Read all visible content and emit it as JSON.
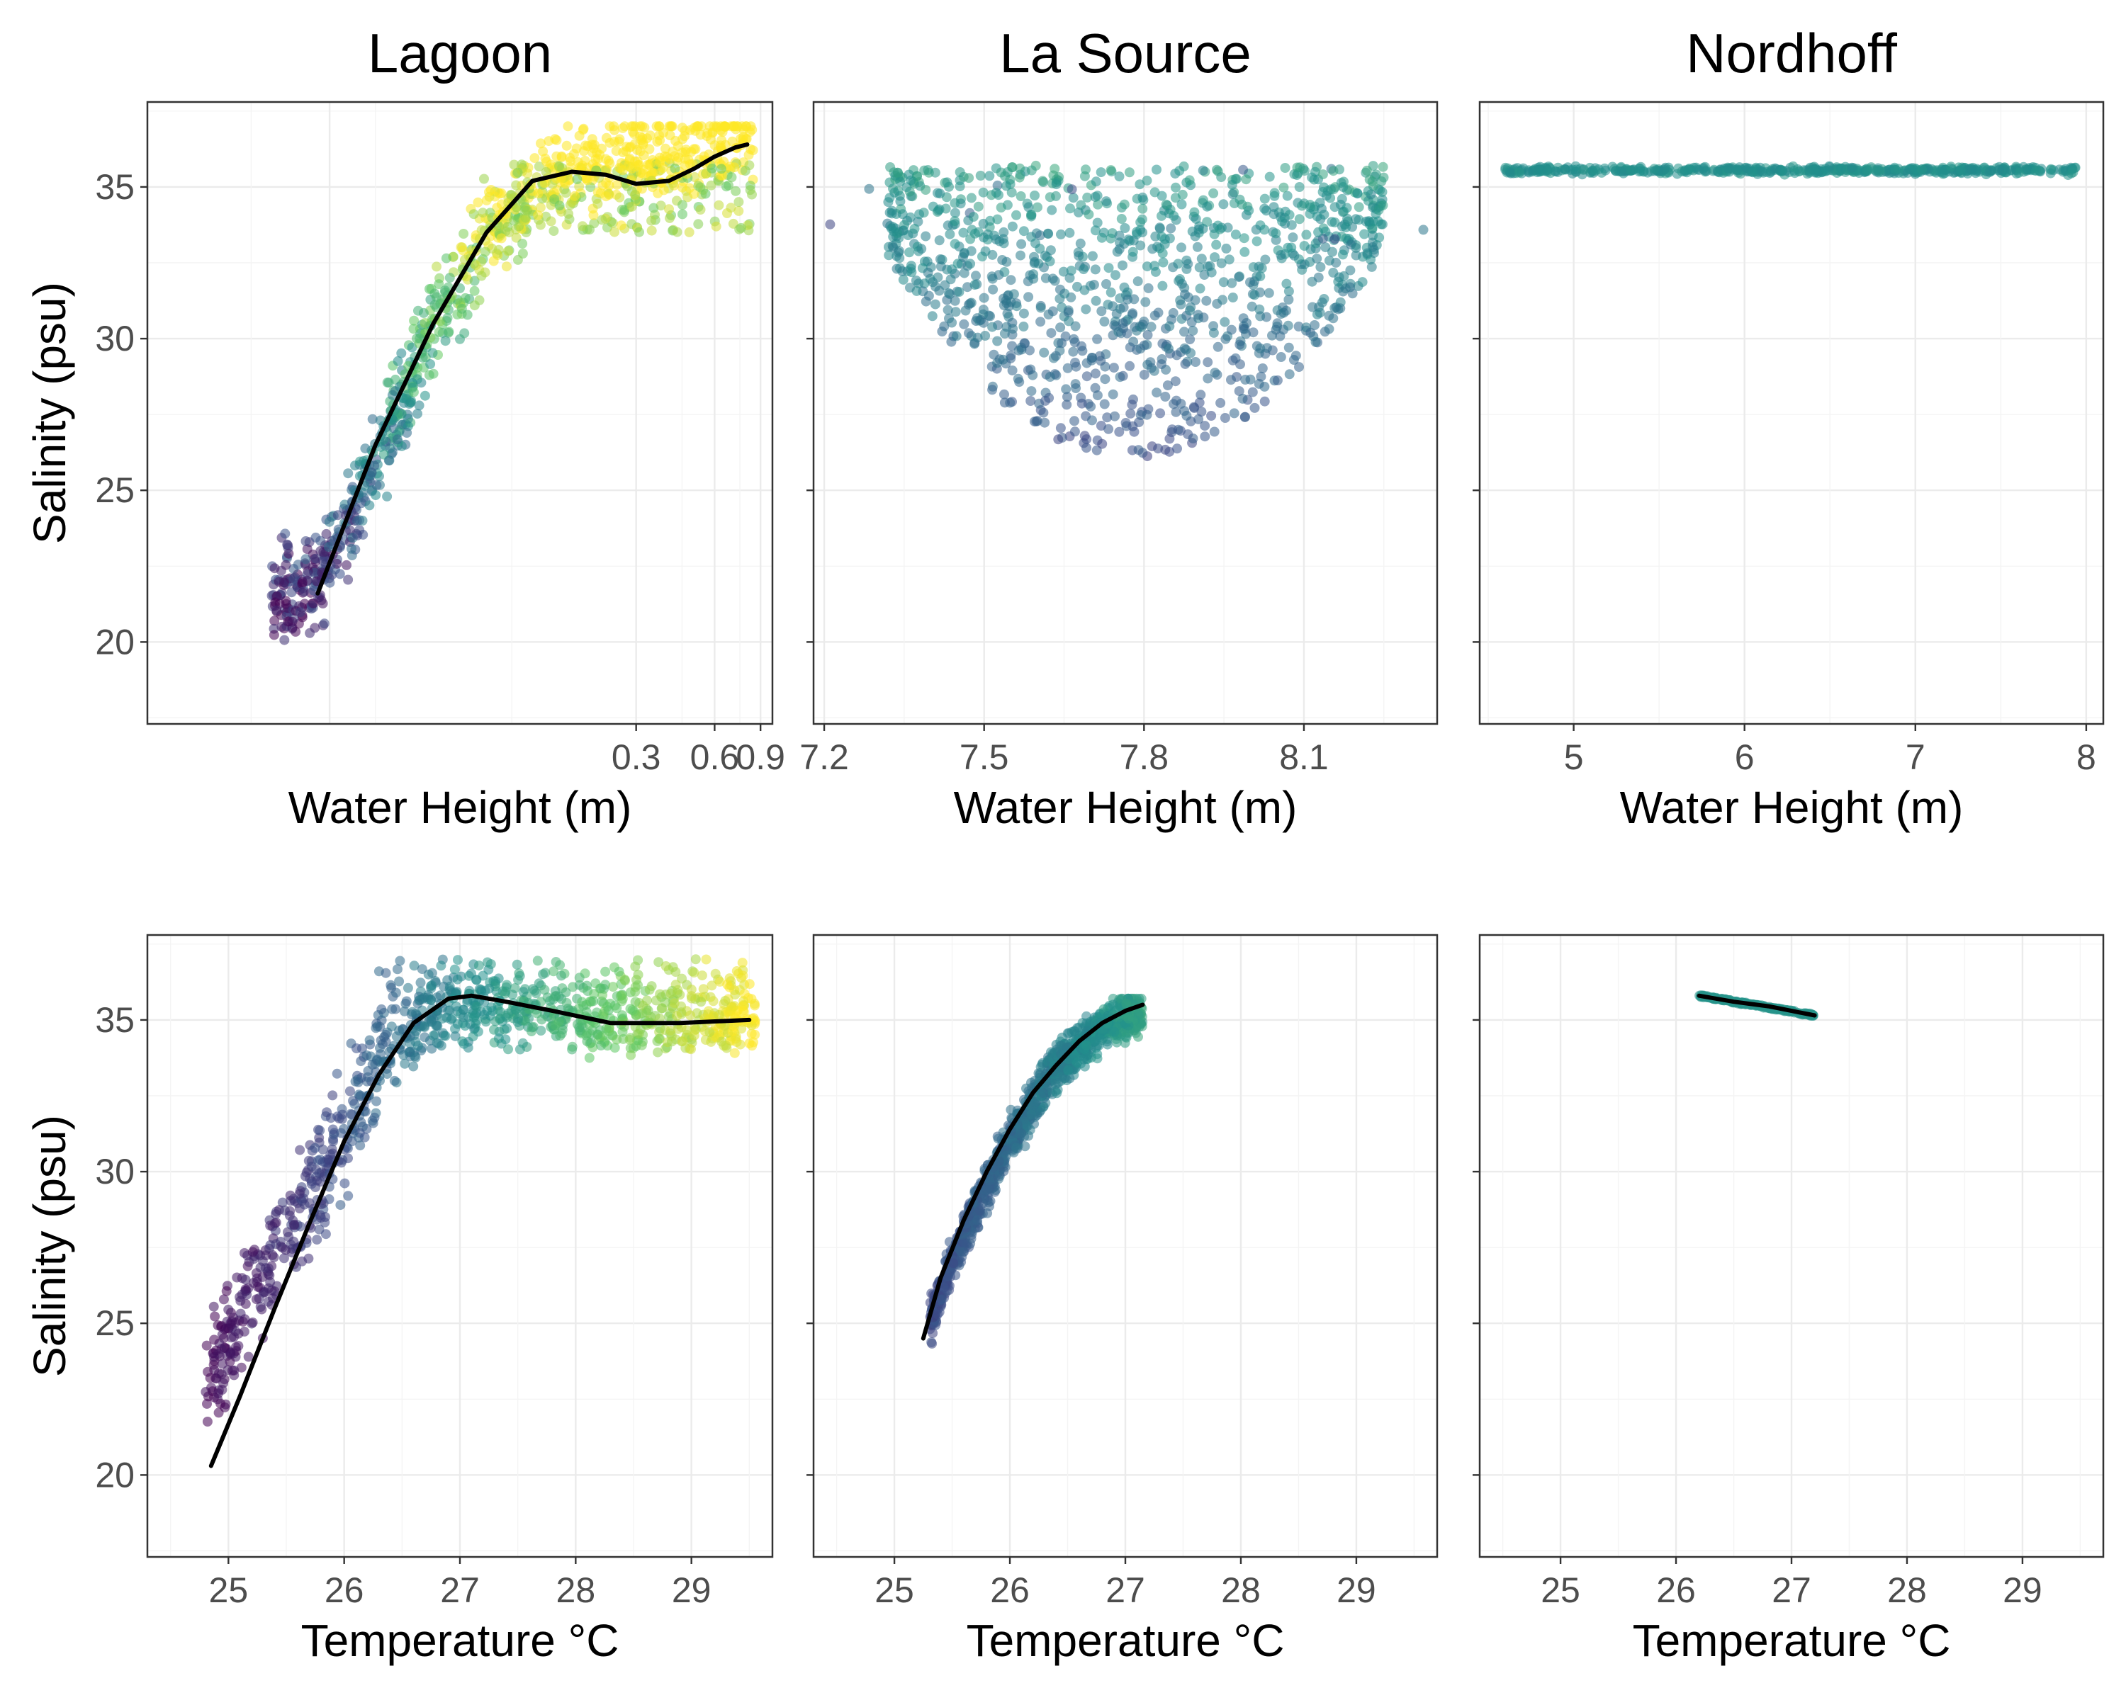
{
  "colors": {
    "smooth_line": "#000000",
    "point_palette": [
      "#440154",
      "#3b528b",
      "#21908d",
      "#5dc863",
      "#fde725"
    ]
  },
  "chart_data": [
    {
      "id": "lagoon-height",
      "type": "scatter",
      "title": "Lagoon",
      "xlabel": "Water Height (m)",
      "ylabel": "Salinity (psu)",
      "x_scale": "log",
      "xlim": [
        0.004,
        1.0
      ],
      "ylim": [
        17.3,
        37.8
      ],
      "xticks": [
        0.3,
        0.6,
        0.9
      ],
      "xtick_labels": [
        "0.3",
        "0.6",
        "0.9"
      ],
      "yticks": [
        20,
        25,
        30,
        35
      ],
      "ytick_labels": [
        "20",
        "25",
        "30",
        "35"
      ],
      "grid": true,
      "smooth": {
        "x": [
          0.018,
          0.03,
          0.05,
          0.08,
          0.12,
          0.17,
          0.23,
          0.3,
          0.4,
          0.5,
          0.6,
          0.72,
          0.8
        ],
        "y": [
          21.6,
          26.5,
          30.5,
          33.5,
          35.2,
          35.5,
          35.4,
          35.1,
          35.2,
          35.6,
          36.0,
          36.3,
          36.4
        ]
      },
      "points": {
        "x": [
          0.018,
          0.022,
          0.03,
          0.05,
          0.08,
          0.15,
          0.3,
          0.5,
          0.75
        ],
        "y": [
          22,
          24,
          27,
          31,
          34,
          36,
          36.5,
          36.8,
          37
        ]
      }
    },
    {
      "id": "lasource-height",
      "type": "scatter",
      "title": "La Source",
      "xlabel": "Water Height (m)",
      "ylabel": "",
      "xlim": [
        7.18,
        8.35
      ],
      "ylim": [
        17.3,
        37.8
      ],
      "xticks": [
        7.2,
        7.5,
        7.8,
        8.1
      ],
      "xtick_labels": [
        "7.2",
        "7.5",
        "7.8",
        "8.1"
      ],
      "yticks": [
        20,
        25,
        30,
        35
      ],
      "grid": true,
      "points": {
        "x": [
          7.3,
          7.5,
          7.65,
          7.8,
          7.95,
          8.1,
          8.25
        ],
        "y": [
          35,
          33,
          30,
          28,
          30,
          33,
          35
        ]
      }
    },
    {
      "id": "nordhoff-height",
      "type": "scatter",
      "title": "Nordhoff",
      "xlabel": "Water Height (m)",
      "ylabel": "",
      "xlim": [
        4.45,
        8.1
      ],
      "ylim": [
        17.3,
        37.8
      ],
      "xticks": [
        5,
        6,
        7,
        8
      ],
      "xtick_labels": [
        "5",
        "6",
        "7",
        "8"
      ],
      "yticks": [
        20,
        25,
        30,
        35
      ],
      "grid": true,
      "points": {
        "x": [
          4.6,
          5.2,
          6.0,
          6.8,
          7.5,
          7.95
        ],
        "y": [
          35.7,
          35.6,
          35.5,
          35.5,
          35.6,
          35.6
        ]
      }
    },
    {
      "id": "lagoon-temp",
      "type": "scatter",
      "title": "",
      "xlabel": "Temperature °C",
      "ylabel": "Salinity (psu)",
      "xlim": [
        24.3,
        29.7
      ],
      "ylim": [
        17.3,
        37.8
      ],
      "xticks": [
        25,
        26,
        27,
        28,
        29
      ],
      "xtick_labels": [
        "25",
        "26",
        "27",
        "28",
        "29"
      ],
      "yticks": [
        20,
        25,
        30,
        35
      ],
      "ytick_labels": [
        "20",
        "25",
        "30",
        "35"
      ],
      "grid": true,
      "smooth": {
        "x": [
          24.85,
          25.1,
          25.4,
          25.7,
          26.0,
          26.3,
          26.6,
          26.9,
          27.1,
          27.4,
          27.8,
          28.3,
          28.9,
          29.5
        ],
        "y": [
          20.3,
          22.6,
          25.5,
          28.3,
          31.0,
          33.2,
          34.9,
          35.7,
          35.8,
          35.6,
          35.3,
          34.9,
          34.9,
          35.0
        ]
      },
      "points": {
        "x": [
          24.8,
          25.3,
          25.8,
          26.3,
          27.0,
          27.8,
          28.6,
          29.5
        ],
        "y": [
          23,
          26,
          30,
          34,
          36,
          35.5,
          35,
          35
        ]
      }
    },
    {
      "id": "lasource-temp",
      "type": "scatter",
      "title": "",
      "xlabel": "Temperature °C",
      "ylabel": "",
      "xlim": [
        24.3,
        29.7
      ],
      "ylim": [
        17.3,
        37.8
      ],
      "xticks": [
        25,
        26,
        27,
        28,
        29
      ],
      "xtick_labels": [
        "25",
        "26",
        "27",
        "28",
        "29"
      ],
      "yticks": [
        20,
        25,
        30,
        35
      ],
      "grid": true,
      "smooth": {
        "x": [
          25.25,
          25.4,
          25.6,
          25.8,
          26.0,
          26.2,
          26.4,
          26.6,
          26.8,
          27.0,
          27.15
        ],
        "y": [
          24.5,
          26.5,
          28.4,
          30.0,
          31.4,
          32.6,
          33.5,
          34.3,
          34.9,
          35.3,
          35.5
        ]
      },
      "points": {
        "x": [
          25.3,
          25.6,
          26.0,
          26.4,
          26.8,
          27.1
        ],
        "y": [
          25,
          28,
          31,
          33.5,
          35,
          35.3
        ]
      }
    },
    {
      "id": "nordhoff-temp",
      "type": "scatter",
      "title": "",
      "xlabel": "Temperature °C",
      "ylabel": "",
      "xlim": [
        24.3,
        29.7
      ],
      "ylim": [
        17.3,
        37.8
      ],
      "xticks": [
        25,
        26,
        27,
        28,
        29
      ],
      "xtick_labels": [
        "25",
        "26",
        "27",
        "28",
        "29"
      ],
      "yticks": [
        20,
        25,
        30,
        35
      ],
      "grid": true,
      "smooth": {
        "x": [
          26.2,
          26.5,
          26.8,
          27.0,
          27.2
        ],
        "y": [
          35.8,
          35.6,
          35.45,
          35.3,
          35.15
        ]
      },
      "points": {
        "x": [
          26.2,
          26.5,
          26.8,
          27.0,
          27.2
        ],
        "y": [
          35.8,
          35.6,
          35.45,
          35.3,
          35.15
        ]
      }
    }
  ]
}
